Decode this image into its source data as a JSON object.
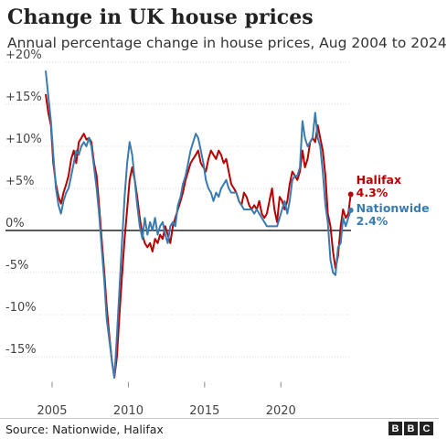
{
  "header": {
    "title": "Change in UK house prices",
    "subtitle": "Annual percentage change in house prices, Aug 2004 to 2024"
  },
  "footer": {
    "source": "Source: Nationwide, Halifax",
    "logo": [
      "B",
      "B",
      "C"
    ]
  },
  "chart_data": {
    "type": "line",
    "y_ticks": [
      {
        "value": 20,
        "label": "+20%"
      },
      {
        "value": 15,
        "label": "+15%"
      },
      {
        "value": 10,
        "label": "+10%"
      },
      {
        "value": 5,
        "label": "+5%"
      },
      {
        "value": 0,
        "label": "0%"
      },
      {
        "value": -5,
        "label": "-5%"
      },
      {
        "value": -10,
        "label": "-10%"
      },
      {
        "value": -15,
        "label": "-15%"
      }
    ],
    "x_ticks": [
      2005,
      2010,
      2015,
      2020
    ],
    "xlim": [
      2004.58,
      2024.6
    ],
    "ylim": [
      -18,
      20
    ],
    "grid": true,
    "series": [
      {
        "name": "Halifax",
        "end_label": "4.3%",
        "color": "#b80000",
        "points": [
          [
            2004.58,
            16.2
          ],
          [
            2004.75,
            14.0
          ],
          [
            2004.92,
            12.5
          ],
          [
            2005.08,
            8.0
          ],
          [
            2005.25,
            5.5
          ],
          [
            2005.42,
            4.0
          ],
          [
            2005.58,
            3.2
          ],
          [
            2005.75,
            4.5
          ],
          [
            2005.92,
            5.5
          ],
          [
            2006.08,
            6.5
          ],
          [
            2006.25,
            8.5
          ],
          [
            2006.42,
            9.5
          ],
          [
            2006.58,
            8.0
          ],
          [
            2006.75,
            10.5
          ],
          [
            2006.92,
            11.0
          ],
          [
            2007.08,
            11.5
          ],
          [
            2007.25,
            10.8
          ],
          [
            2007.42,
            11.0
          ],
          [
            2007.58,
            10.5
          ],
          [
            2007.75,
            8.0
          ],
          [
            2007.92,
            6.5
          ],
          [
            2008.08,
            3.0
          ],
          [
            2008.25,
            -1.0
          ],
          [
            2008.42,
            -5.0
          ],
          [
            2008.58,
            -9.0
          ],
          [
            2008.75,
            -12.5
          ],
          [
            2008.92,
            -15.5
          ],
          [
            2009.08,
            -17.5
          ],
          [
            2009.25,
            -15.0
          ],
          [
            2009.42,
            -10.0
          ],
          [
            2009.58,
            -5.5
          ],
          [
            2009.75,
            -1.0
          ],
          [
            2009.92,
            2.5
          ],
          [
            2010.08,
            6.0
          ],
          [
            2010.25,
            7.5
          ],
          [
            2010.42,
            6.0
          ],
          [
            2010.58,
            4.0
          ],
          [
            2010.75,
            1.5
          ],
          [
            2010.92,
            -0.5
          ],
          [
            2011.08,
            -1.5
          ],
          [
            2011.25,
            -2.0
          ],
          [
            2011.42,
            -1.5
          ],
          [
            2011.58,
            -2.5
          ],
          [
            2011.75,
            -1.0
          ],
          [
            2011.92,
            -1.5
          ],
          [
            2012.08,
            -0.5
          ],
          [
            2012.25,
            -1.0
          ],
          [
            2012.42,
            0.5
          ],
          [
            2012.58,
            -0.5
          ],
          [
            2012.75,
            -1.5
          ],
          [
            2012.92,
            0.5
          ],
          [
            2013.08,
            1.5
          ],
          [
            2013.25,
            2.5
          ],
          [
            2013.42,
            3.5
          ],
          [
            2013.58,
            4.5
          ],
          [
            2013.75,
            6.0
          ],
          [
            2013.92,
            7.0
          ],
          [
            2014.08,
            8.0
          ],
          [
            2014.25,
            8.5
          ],
          [
            2014.42,
            9.0
          ],
          [
            2014.58,
            9.5
          ],
          [
            2014.75,
            8.0
          ],
          [
            2014.92,
            7.5
          ],
          [
            2015.08,
            7.0
          ],
          [
            2015.25,
            8.5
          ],
          [
            2015.42,
            9.5
          ],
          [
            2015.58,
            9.0
          ],
          [
            2015.75,
            8.5
          ],
          [
            2015.92,
            9.5
          ],
          [
            2016.08,
            9.0
          ],
          [
            2016.25,
            8.0
          ],
          [
            2016.42,
            8.5
          ],
          [
            2016.58,
            7.0
          ],
          [
            2016.75,
            5.5
          ],
          [
            2016.92,
            5.0
          ],
          [
            2017.08,
            4.5
          ],
          [
            2017.25,
            3.5
          ],
          [
            2017.42,
            3.0
          ],
          [
            2017.58,
            4.5
          ],
          [
            2017.75,
            4.0
          ],
          [
            2017.92,
            3.0
          ],
          [
            2018.08,
            2.5
          ],
          [
            2018.25,
            3.0
          ],
          [
            2018.42,
            2.5
          ],
          [
            2018.58,
            3.5
          ],
          [
            2018.75,
            2.0
          ],
          [
            2018.92,
            1.5
          ],
          [
            2019.08,
            2.0
          ],
          [
            2019.25,
            3.5
          ],
          [
            2019.42,
            5.0
          ],
          [
            2019.58,
            2.5
          ],
          [
            2019.75,
            1.0
          ],
          [
            2019.92,
            4.0
          ],
          [
            2020.08,
            3.5
          ],
          [
            2020.25,
            2.5
          ],
          [
            2020.42,
            3.5
          ],
          [
            2020.58,
            5.5
          ],
          [
            2020.75,
            7.0
          ],
          [
            2020.92,
            6.5
          ],
          [
            2021.08,
            6.0
          ],
          [
            2021.25,
            7.0
          ],
          [
            2021.42,
            9.5
          ],
          [
            2021.58,
            7.5
          ],
          [
            2021.75,
            8.5
          ],
          [
            2021.92,
            10.5
          ],
          [
            2022.08,
            11.0
          ],
          [
            2022.25,
            10.5
          ],
          [
            2022.42,
            12.5
          ],
          [
            2022.58,
            11.0
          ],
          [
            2022.75,
            9.5
          ],
          [
            2022.92,
            6.5
          ],
          [
            2023.08,
            2.0
          ],
          [
            2023.25,
            0.5
          ],
          [
            2023.42,
            -2.5
          ],
          [
            2023.58,
            -4.5
          ],
          [
            2023.75,
            -3.0
          ],
          [
            2023.92,
            0.5
          ],
          [
            2024.08,
            2.5
          ],
          [
            2024.25,
            1.5
          ],
          [
            2024.42,
            2.0
          ],
          [
            2024.58,
            4.3
          ]
        ]
      },
      {
        "name": "Nationwide",
        "end_label": "2.4%",
        "color": "#3a7bb0",
        "points": [
          [
            2004.58,
            19.0
          ],
          [
            2004.75,
            16.0
          ],
          [
            2004.92,
            13.0
          ],
          [
            2005.08,
            9.0
          ],
          [
            2005.25,
            5.0
          ],
          [
            2005.42,
            3.0
          ],
          [
            2005.58,
            2.0
          ],
          [
            2005.75,
            3.5
          ],
          [
            2005.92,
            4.5
          ],
          [
            2006.08,
            5.0
          ],
          [
            2006.25,
            6.5
          ],
          [
            2006.42,
            8.0
          ],
          [
            2006.58,
            9.5
          ],
          [
            2006.75,
            9.0
          ],
          [
            2006.92,
            10.0
          ],
          [
            2007.08,
            10.5
          ],
          [
            2007.25,
            10.0
          ],
          [
            2007.42,
            11.0
          ],
          [
            2007.58,
            10.0
          ],
          [
            2007.75,
            7.5
          ],
          [
            2007.92,
            5.0
          ],
          [
            2008.08,
            2.0
          ],
          [
            2008.25,
            -2.0
          ],
          [
            2008.42,
            -6.0
          ],
          [
            2008.58,
            -10.5
          ],
          [
            2008.75,
            -13.0
          ],
          [
            2008.92,
            -15.5
          ],
          [
            2009.08,
            -17.5
          ],
          [
            2009.25,
            -12.5
          ],
          [
            2009.42,
            -7.0
          ],
          [
            2009.58,
            -1.5
          ],
          [
            2009.75,
            4.0
          ],
          [
            2009.92,
            8.0
          ],
          [
            2010.08,
            10.5
          ],
          [
            2010.25,
            9.0
          ],
          [
            2010.42,
            6.0
          ],
          [
            2010.58,
            3.0
          ],
          [
            2010.75,
            0.5
          ],
          [
            2010.92,
            -1.0
          ],
          [
            2011.08,
            1.5
          ],
          [
            2011.25,
            -0.5
          ],
          [
            2011.42,
            1.0
          ],
          [
            2011.58,
            0.0
          ],
          [
            2011.75,
            1.5
          ],
          [
            2011.92,
            -0.5
          ],
          [
            2012.08,
            0.5
          ],
          [
            2012.25,
            1.0
          ],
          [
            2012.42,
            -0.5
          ],
          [
            2012.58,
            -1.5
          ],
          [
            2012.75,
            0.5
          ],
          [
            2012.92,
            1.0
          ],
          [
            2013.08,
            0.5
          ],
          [
            2013.25,
            3.0
          ],
          [
            2013.42,
            4.0
          ],
          [
            2013.58,
            5.5
          ],
          [
            2013.75,
            6.5
          ],
          [
            2013.92,
            8.0
          ],
          [
            2014.08,
            9.5
          ],
          [
            2014.25,
            10.5
          ],
          [
            2014.42,
            11.5
          ],
          [
            2014.58,
            11.0
          ],
          [
            2014.75,
            9.5
          ],
          [
            2014.92,
            8.0
          ],
          [
            2015.08,
            6.0
          ],
          [
            2015.25,
            5.0
          ],
          [
            2015.42,
            4.5
          ],
          [
            2015.58,
            3.5
          ],
          [
            2015.75,
            4.5
          ],
          [
            2015.92,
            4.0
          ],
          [
            2016.08,
            5.0
          ],
          [
            2016.25,
            5.5
          ],
          [
            2016.42,
            6.0
          ],
          [
            2016.58,
            5.0
          ],
          [
            2016.75,
            4.5
          ],
          [
            2016.92,
            4.5
          ],
          [
            2017.08,
            4.5
          ],
          [
            2017.25,
            3.5
          ],
          [
            2017.42,
            3.0
          ],
          [
            2017.58,
            2.5
          ],
          [
            2017.75,
            2.5
          ],
          [
            2017.92,
            2.5
          ],
          [
            2018.08,
            2.5
          ],
          [
            2018.25,
            2.0
          ],
          [
            2018.42,
            2.5
          ],
          [
            2018.58,
            2.0
          ],
          [
            2018.75,
            1.5
          ],
          [
            2018.92,
            1.0
          ],
          [
            2019.08,
            0.5
          ],
          [
            2019.25,
            0.5
          ],
          [
            2019.42,
            0.5
          ],
          [
            2019.58,
            0.5
          ],
          [
            2019.75,
            0.5
          ],
          [
            2019.92,
            1.5
          ],
          [
            2020.08,
            2.5
          ],
          [
            2020.25,
            3.5
          ],
          [
            2020.42,
            2.0
          ],
          [
            2020.58,
            3.5
          ],
          [
            2020.75,
            6.0
          ],
          [
            2020.92,
            6.5
          ],
          [
            2021.08,
            6.5
          ],
          [
            2021.25,
            7.5
          ],
          [
            2021.42,
            13.0
          ],
          [
            2021.58,
            11.0
          ],
          [
            2021.75,
            10.0
          ],
          [
            2021.92,
            10.5
          ],
          [
            2022.08,
            11.0
          ],
          [
            2022.25,
            14.0
          ],
          [
            2022.42,
            11.0
          ],
          [
            2022.58,
            10.0
          ],
          [
            2022.75,
            7.0
          ],
          [
            2022.92,
            3.0
          ],
          [
            2023.08,
            1.0
          ],
          [
            2023.25,
            -3.5
          ],
          [
            2023.42,
            -5.0
          ],
          [
            2023.58,
            -5.3
          ],
          [
            2023.75,
            -2.0
          ],
          [
            2023.92,
            -1.5
          ],
          [
            2024.08,
            1.5
          ],
          [
            2024.25,
            0.5
          ],
          [
            2024.42,
            1.5
          ],
          [
            2024.58,
            2.4
          ]
        ]
      }
    ]
  }
}
